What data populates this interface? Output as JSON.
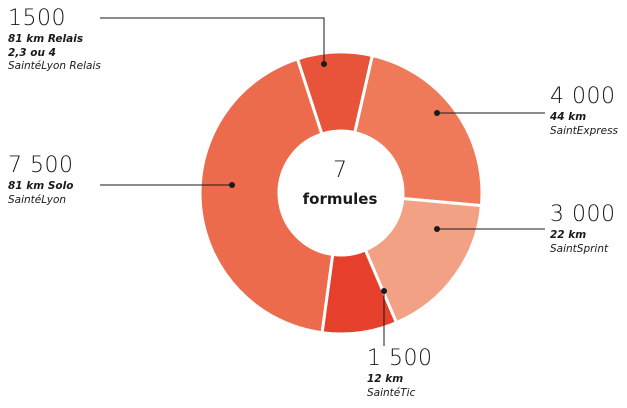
{
  "chart_data": {
    "type": "pie",
    "center": {
      "number": "7",
      "label": "formules"
    },
    "slices": [
      {
        "value": 1500,
        "value_label": "1500",
        "line1": "81 km Relais",
        "line2": "2,3 ou 4",
        "name": "SaintéLyon Relais",
        "color": "#e8543a"
      },
      {
        "value": 4000,
        "value_label": "4 000",
        "line1": "44 km",
        "line2": "",
        "name": "SaintExpress",
        "color": "#ef7a5a"
      },
      {
        "value": 3000,
        "value_label": "3 000",
        "line1": "22 km",
        "line2": "",
        "name": "SaintSprint",
        "color": "#f3a184"
      },
      {
        "value": 1500,
        "value_label": "1 500",
        "line1": "12 km",
        "line2": "",
        "name": "SaintéTic",
        "color": "#e63f2b"
      },
      {
        "value": 7500,
        "value_label": "7 500",
        "line1": "81 km Solo",
        "line2": "",
        "name": "SaintéLyon",
        "color": "#ec6b4d"
      }
    ]
  }
}
